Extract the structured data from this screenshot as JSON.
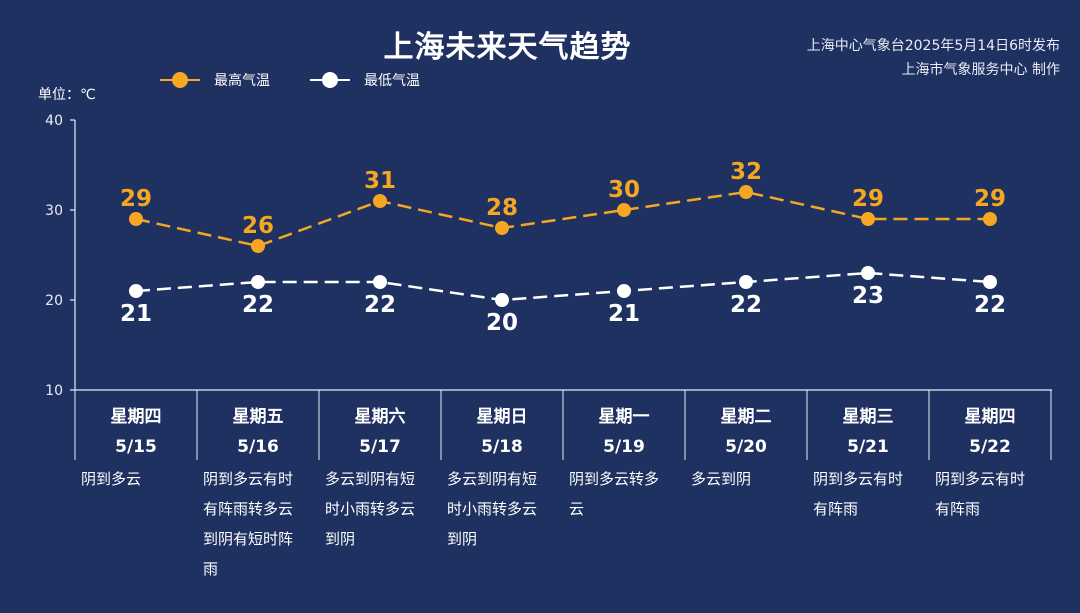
{
  "chart_data": {
    "type": "line",
    "title": "上海未来天气趋势",
    "ylabel": "单位：℃",
    "ylim": [
      10,
      40
    ],
    "yticks": [
      10,
      20,
      30,
      40
    ],
    "grid": false,
    "legend_position": "top-left",
    "categories": [
      {
        "weekday": "星期四",
        "date": "5/15",
        "weather": "阴到多云",
        "weather_lines": [
          "阴到多云"
        ]
      },
      {
        "weekday": "星期五",
        "date": "5/16",
        "weather": "阴到多云有时有阵雨转多云到阴有短时阵雨",
        "weather_lines": [
          "阴到多云有时",
          "有阵雨转多云",
          "到阴有短时阵",
          "雨"
        ]
      },
      {
        "weekday": "星期六",
        "date": "5/17",
        "weather": "多云到阴有短时小雨转多云到阴",
        "weather_lines": [
          "多云到阴有短",
          "时小雨转多云",
          "到阴"
        ]
      },
      {
        "weekday": "星期日",
        "date": "5/18",
        "weather": "多云到阴有短时小雨转多云到阴",
        "weather_lines": [
          "多云到阴有短",
          "时小雨转多云",
          "到阴"
        ]
      },
      {
        "weekday": "星期一",
        "date": "5/19",
        "weather": "阴到多云转多云",
        "weather_lines": [
          "阴到多云转多",
          "云"
        ]
      },
      {
        "weekday": "星期二",
        "date": "5/20",
        "weather": "多云到阴",
        "weather_lines": [
          "多云到阴"
        ]
      },
      {
        "weekday": "星期三",
        "date": "5/21",
        "weather": "阴到多云有时有阵雨",
        "weather_lines": [
          "阴到多云有时",
          "有阵雨"
        ]
      },
      {
        "weekday": "星期四",
        "date": "5/22",
        "weather": "阴到多云有时有阵雨",
        "weather_lines": [
          "阴到多云有时",
          "有阵雨"
        ]
      }
    ],
    "series": [
      {
        "name": "最高气温",
        "color": "#f5a623",
        "values": [
          29,
          26,
          31,
          28,
          30,
          32,
          29,
          29
        ],
        "label_position": "above"
      },
      {
        "name": "最低气温",
        "color": "#ffffff",
        "values": [
          21,
          22,
          22,
          20,
          21,
          22,
          23,
          22
        ],
        "label_position": "below"
      }
    ]
  },
  "header": {
    "issuer_line1": "上海中心气象台2025年5月14日6时发布",
    "issuer_line2": "上海市气象服务中心 制作"
  },
  "colors": {
    "background": "#1e3160",
    "high": "#f5a623",
    "low": "#ffffff",
    "axis": "#e8ecf5"
  }
}
